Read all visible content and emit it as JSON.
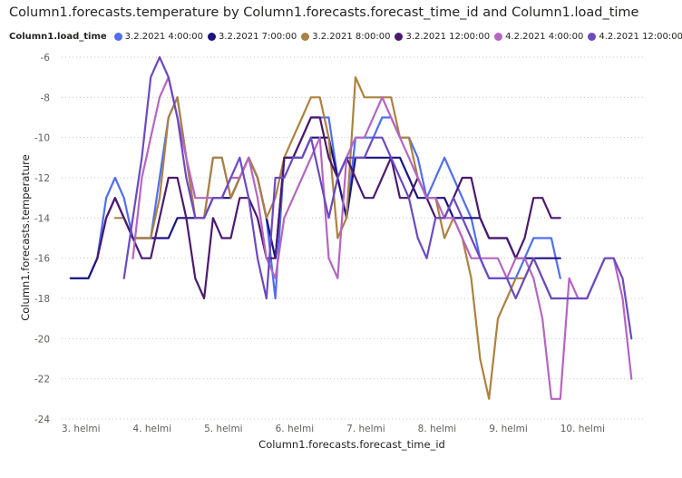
{
  "chart_data": {
    "type": "line",
    "title": "Column1.forecasts.temperature by Column1.forecasts.forecast_time_id and Column1.load_time",
    "xlabel": "Column1.forecasts.forecast_time_id",
    "ylabel": "Column1.forecasts.temperature",
    "legend_title": "Column1.load_time",
    "legend_position": "top-left",
    "grid": true,
    "xlim": [
      0,
      8.2
    ],
    "ylim": [
      -24,
      -6
    ],
    "x_ticks": [
      {
        "value": 0,
        "label": "3. helmi"
      },
      {
        "value": 1,
        "label": "4. helmi"
      },
      {
        "value": 2,
        "label": "5. helmi"
      },
      {
        "value": 3,
        "label": "6. helmi"
      },
      {
        "value": 4,
        "label": "7. helmi"
      },
      {
        "value": 5,
        "label": "8. helmi"
      },
      {
        "value": 6,
        "label": "9. helmi"
      },
      {
        "value": 7,
        "label": "10. helmi"
      }
    ],
    "y_ticks": [
      -6,
      -8,
      -10,
      -12,
      -14,
      -16,
      -18,
      -20,
      -22,
      -24
    ],
    "series": [
      {
        "name": "3.2.2021 4:00:00",
        "color": "#4f6ff0",
        "x": [
          0.125,
          0.25,
          0.375,
          0.5,
          0.625,
          0.75,
          0.875,
          1.0,
          1.125,
          1.25,
          1.375,
          1.5,
          1.625,
          1.75,
          1.875,
          2.0,
          2.125,
          2.25,
          2.375,
          2.5,
          2.625,
          2.75,
          2.875,
          3.0,
          3.125,
          3.25,
          3.375,
          3.5,
          3.625,
          3.75,
          3.875,
          4.0,
          4.125,
          4.25,
          4.375,
          4.5,
          4.625,
          4.75,
          4.875,
          5.0,
          5.125,
          5.25,
          5.375,
          5.5,
          5.625,
          5.75,
          5.875,
          6.0,
          6.125,
          6.25,
          6.375,
          6.5,
          6.625,
          6.75,
          6.875,
          7.0
        ],
        "y": [
          -17,
          -17,
          -17,
          -16,
          -13,
          -12,
          -13,
          -15,
          -15,
          -15,
          -12,
          -9,
          -8,
          -11,
          -14,
          -14,
          -11,
          -11,
          -13,
          -12,
          -11,
          -12,
          -14,
          -18,
          -11,
          -11,
          -10,
          -9,
          -9,
          -9,
          -12,
          -14,
          -10,
          -10,
          -10,
          -9,
          -9,
          -10,
          -10,
          -11,
          -13,
          -12,
          -11,
          -12,
          -13,
          -14,
          -16,
          -17,
          -17,
          -17,
          -17,
          -16,
          -15,
          -15,
          -15,
          -17
        ]
      },
      {
        "name": "3.2.2021 7:00:00",
        "color": "#1c1481",
        "x": [
          0.125,
          0.25,
          0.375,
          0.5,
          0.625,
          0.75,
          0.875,
          1.0,
          1.125,
          1.25,
          1.375,
          1.5,
          1.625,
          1.75,
          1.875,
          2.0,
          2.125,
          2.25,
          2.375,
          2.5,
          2.625,
          2.75,
          2.875,
          3.0,
          3.125,
          3.25,
          3.375,
          3.5,
          3.625,
          3.75,
          3.875,
          4.0,
          4.125,
          4.25,
          4.375,
          4.5,
          4.625,
          4.75,
          4.875,
          5.0,
          5.125,
          5.25,
          5.375,
          5.5,
          5.625,
          5.75,
          5.875,
          6.0,
          6.125,
          6.25,
          6.375,
          6.5,
          6.625,
          6.75,
          6.875,
          7.0
        ],
        "y": [
          -17,
          -17,
          -17,
          -16,
          -14,
          -13,
          -14,
          -15,
          -15,
          -15,
          -15,
          -15,
          -14,
          -14,
          -14,
          -14,
          -13,
          -13,
          -13,
          -12,
          -11,
          -12,
          -14,
          -16,
          -11,
          -11,
          -11,
          -10,
          -10,
          -10,
          -12,
          -14,
          -11,
          -11,
          -11,
          -11,
          -11,
          -11,
          -12,
          -13,
          -13,
          -13,
          -13,
          -14,
          -14,
          -14,
          -14,
          -15,
          -15,
          -15,
          -16,
          -16,
          -16,
          -16,
          -16,
          -16
        ]
      },
      {
        "name": "3.2.2021 8:00:00",
        "color": "#ac8240",
        "x": [
          0.75,
          0.875,
          1.0,
          1.125,
          1.25,
          1.375,
          1.5,
          1.625,
          1.75,
          1.875,
          2.0,
          2.125,
          2.25,
          2.375,
          2.5,
          2.625,
          2.75,
          2.875,
          3.0,
          3.125,
          3.25,
          3.375,
          3.5,
          3.625,
          3.75,
          3.875,
          4.0,
          4.125,
          4.25,
          4.375,
          4.5,
          4.625,
          4.75,
          4.875,
          5.0,
          5.125,
          5.25,
          5.375,
          5.5,
          5.625,
          5.75,
          5.875,
          6.0,
          6.125,
          6.25,
          6.375,
          6.5,
          6.625,
          6.75,
          6.875,
          7.0
        ],
        "y": [
          -14,
          -14,
          -15,
          -15,
          -15,
          -13,
          -9,
          -8,
          -11,
          -14,
          -14,
          -11,
          -11,
          -13,
          -12,
          -11,
          -12,
          -14,
          -13,
          -11,
          -10,
          -9,
          -8,
          -8,
          -10,
          -15,
          -14,
          -7,
          -8,
          -8,
          -8,
          -8,
          -10,
          -10,
          -12,
          -13,
          -13,
          -15,
          -14,
          -15,
          -17,
          -21,
          -23,
          -19,
          -18,
          -17,
          -17,
          -16,
          -17,
          -18,
          -18
        ]
      },
      {
        "name": "3.2.2021 12:00:00",
        "color": "#4b1a6e",
        "x": [
          0.5,
          0.625,
          0.75,
          0.875,
          1.0,
          1.125,
          1.25,
          1.375,
          1.5,
          1.625,
          1.75,
          1.875,
          2.0,
          2.125,
          2.25,
          2.375,
          2.5,
          2.625,
          2.75,
          2.875,
          3.0,
          3.125,
          3.25,
          3.375,
          3.5,
          3.625,
          3.75,
          3.875,
          4.0,
          4.125,
          4.25,
          4.375,
          4.5,
          4.625,
          4.75,
          4.875,
          5.0,
          5.125,
          5.25,
          5.375,
          5.5,
          5.625,
          5.75,
          5.875,
          6.0,
          6.125,
          6.25,
          6.375,
          6.5,
          6.625,
          6.75,
          6.875,
          7.0
        ],
        "y": [
          -16,
          -14,
          -13,
          -14,
          -15,
          -16,
          -16,
          -14,
          -12,
          -12,
          -14,
          -17,
          -18,
          -14,
          -15,
          -15,
          -13,
          -13,
          -14,
          -16,
          -16,
          -11,
          -11,
          -10,
          -9,
          -9,
          -11,
          -12,
          -11,
          -12,
          -13,
          -13,
          -12,
          -11,
          -13,
          -13,
          -12,
          -13,
          -14,
          -14,
          -13,
          -12,
          -12,
          -14,
          -15,
          -15,
          -15,
          -16,
          -15,
          -13,
          -13,
          -14,
          -14
        ]
      },
      {
        "name": "4.2.2021 4:00:00",
        "color": "#b565c2",
        "x": [
          1.0,
          1.125,
          1.25,
          1.375,
          1.5,
          1.625,
          1.75,
          1.875,
          2.0,
          2.125,
          2.25,
          2.375,
          2.5,
          2.625,
          2.75,
          2.875,
          3.0,
          3.125,
          3.25,
          3.375,
          3.5,
          3.625,
          3.75,
          3.875,
          4.0,
          4.125,
          4.25,
          4.375,
          4.5,
          4.625,
          4.75,
          4.875,
          5.0,
          5.125,
          5.25,
          5.375,
          5.5,
          5.625,
          5.75,
          5.875,
          6.0,
          6.125,
          6.25,
          6.375,
          6.5,
          6.625,
          6.75,
          6.875,
          7.0,
          7.125,
          7.25,
          7.375,
          7.5,
          7.625,
          7.75,
          7.875,
          8.0
        ],
        "y": [
          -16,
          -12,
          -10,
          -8,
          -7,
          -9,
          -11,
          -13,
          -13,
          -13,
          -13,
          -12,
          -12,
          -11,
          -13,
          -16,
          -17,
          -14,
          -13,
          -12,
          -11,
          -10,
          -16,
          -17,
          -11,
          -10,
          -10,
          -9,
          -8,
          -9,
          -10,
          -11,
          -12,
          -13,
          -13,
          -14,
          -14,
          -15,
          -16,
          -16,
          -16,
          -16,
          -17,
          -16,
          -16,
          -17,
          -19,
          -23,
          -23,
          -17,
          -18,
          -18,
          -17,
          -16,
          -16,
          -18,
          -22
        ]
      },
      {
        "name": "4.2.2021 12:00:00",
        "color": "#6b4ac0",
        "x": [
          0.875,
          1.0,
          1.125,
          1.25,
          1.375,
          1.5,
          1.625,
          1.75,
          1.875,
          2.0,
          2.125,
          2.25,
          2.375,
          2.5,
          2.625,
          2.75,
          2.875,
          3.0,
          3.125,
          3.25,
          3.375,
          3.5,
          3.625,
          3.75,
          3.875,
          4.0,
          4.125,
          4.25,
          4.375,
          4.5,
          4.625,
          4.75,
          4.875,
          5.0,
          5.125,
          5.25,
          5.375,
          5.5,
          5.625,
          5.75,
          5.875,
          6.0,
          6.125,
          6.25,
          6.375,
          6.5,
          6.625,
          6.75,
          6.875,
          7.0,
          7.125,
          7.25,
          7.375,
          7.5,
          7.625,
          7.75,
          7.875,
          8.0
        ],
        "y": [
          -17,
          -14,
          -11,
          -7,
          -6,
          -7,
          -9,
          -12,
          -14,
          -14,
          -13,
          -13,
          -12,
          -11,
          -13,
          -16,
          -18,
          -12,
          -12,
          -11,
          -11,
          -10,
          -12,
          -14,
          -12,
          -11,
          -11,
          -11,
          -10,
          -10,
          -11,
          -12,
          -13,
          -15,
          -16,
          -14,
          -14,
          -13,
          -14,
          -15,
          -16,
          -17,
          -17,
          -17,
          -18,
          -17,
          -16,
          -17,
          -18,
          -18,
          -18,
          -18,
          -18,
          -17,
          -16,
          -16,
          -17,
          -20
        ]
      }
    ]
  }
}
